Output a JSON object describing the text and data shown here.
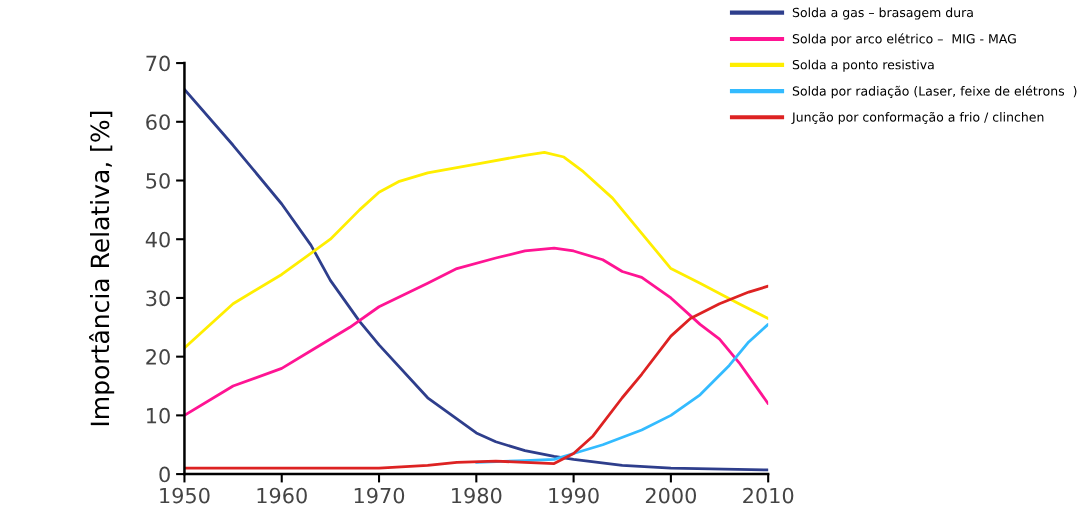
{
  "chart_data": {
    "type": "line",
    "ylabel": "Importância Relativa, [%]",
    "xlim": [
      1950,
      2010
    ],
    "xticks": [
      1950,
      1960,
      1970,
      1980,
      1990,
      2000,
      2010
    ],
    "ylim": [
      0,
      70
    ],
    "yticks": [
      0,
      10,
      20,
      30,
      40,
      50,
      60,
      70
    ],
    "grid": false,
    "legend": "top right",
    "marker": "none",
    "line_style": "solid",
    "series": [
      {
        "name": "Solda a gas – brasagem dura",
        "color": "#2e3e8c",
        "x": [
          1950,
          1955,
          1960,
          1963,
          1965,
          1968,
          1970,
          1975,
          1980,
          1982,
          1985,
          1988,
          1990,
          1995,
          2000,
          2010
        ],
        "values": [
          65.5,
          56,
          46,
          39,
          33,
          26,
          22,
          13,
          7,
          5.5,
          4,
          3,
          2.5,
          1.5,
          1,
          0.7
        ]
      },
      {
        "name": "Solda por arco elétrico –  MIG - MAG",
        "color": "#ff1493",
        "x": [
          1950,
          1955,
          1960,
          1963,
          1967,
          1970,
          1975,
          1978,
          1982,
          1985,
          1988,
          1990,
          1993,
          1995,
          1997,
          2000,
          2003,
          2005,
          2007,
          2010
        ],
        "values": [
          10,
          15,
          18,
          21,
          25,
          28.5,
          32.5,
          35,
          36.8,
          38,
          38.5,
          38,
          36.5,
          34.5,
          33.5,
          30,
          25.5,
          23,
          19,
          12
        ]
      },
      {
        "name": "Solda a ponto resistiva",
        "color": "#ffee00",
        "x": [
          1950,
          1955,
          1960,
          1965,
          1968,
          1970,
          1972,
          1975,
          1980,
          1985,
          1987,
          1989,
          1991,
          1994,
          1997,
          2000,
          2003,
          2007,
          2010
        ],
        "values": [
          21.5,
          29,
          34,
          40,
          45,
          48,
          49.8,
          51.3,
          52.8,
          54.3,
          54.8,
          54,
          51.5,
          47,
          41,
          35,
          32.5,
          29,
          26.5
        ]
      },
      {
        "name": "Solda por radiação (Laser, feixe de elétrons  )",
        "color": "#33bbff",
        "x": [
          1980,
          1985,
          1988,
          1990,
          1993,
          1997,
          2000,
          2003,
          2006,
          2008,
          2010
        ],
        "values": [
          2,
          2.3,
          2.5,
          3.5,
          5,
          7.5,
          10,
          13.5,
          18.5,
          22.5,
          25.5
        ]
      },
      {
        "name": "Junção por conformação a frio / clinchen",
        "color": "#dd2222",
        "x": [
          1950,
          1970,
          1975,
          1978,
          1982,
          1985,
          1988,
          1990,
          1992,
          1995,
          1997,
          2000,
          2002,
          2005,
          2008,
          2010
        ],
        "values": [
          1,
          1,
          1.5,
          2,
          2.2,
          2,
          1.8,
          3.5,
          6.5,
          13,
          17,
          23.5,
          26.5,
          29,
          31,
          32
        ]
      }
    ]
  }
}
